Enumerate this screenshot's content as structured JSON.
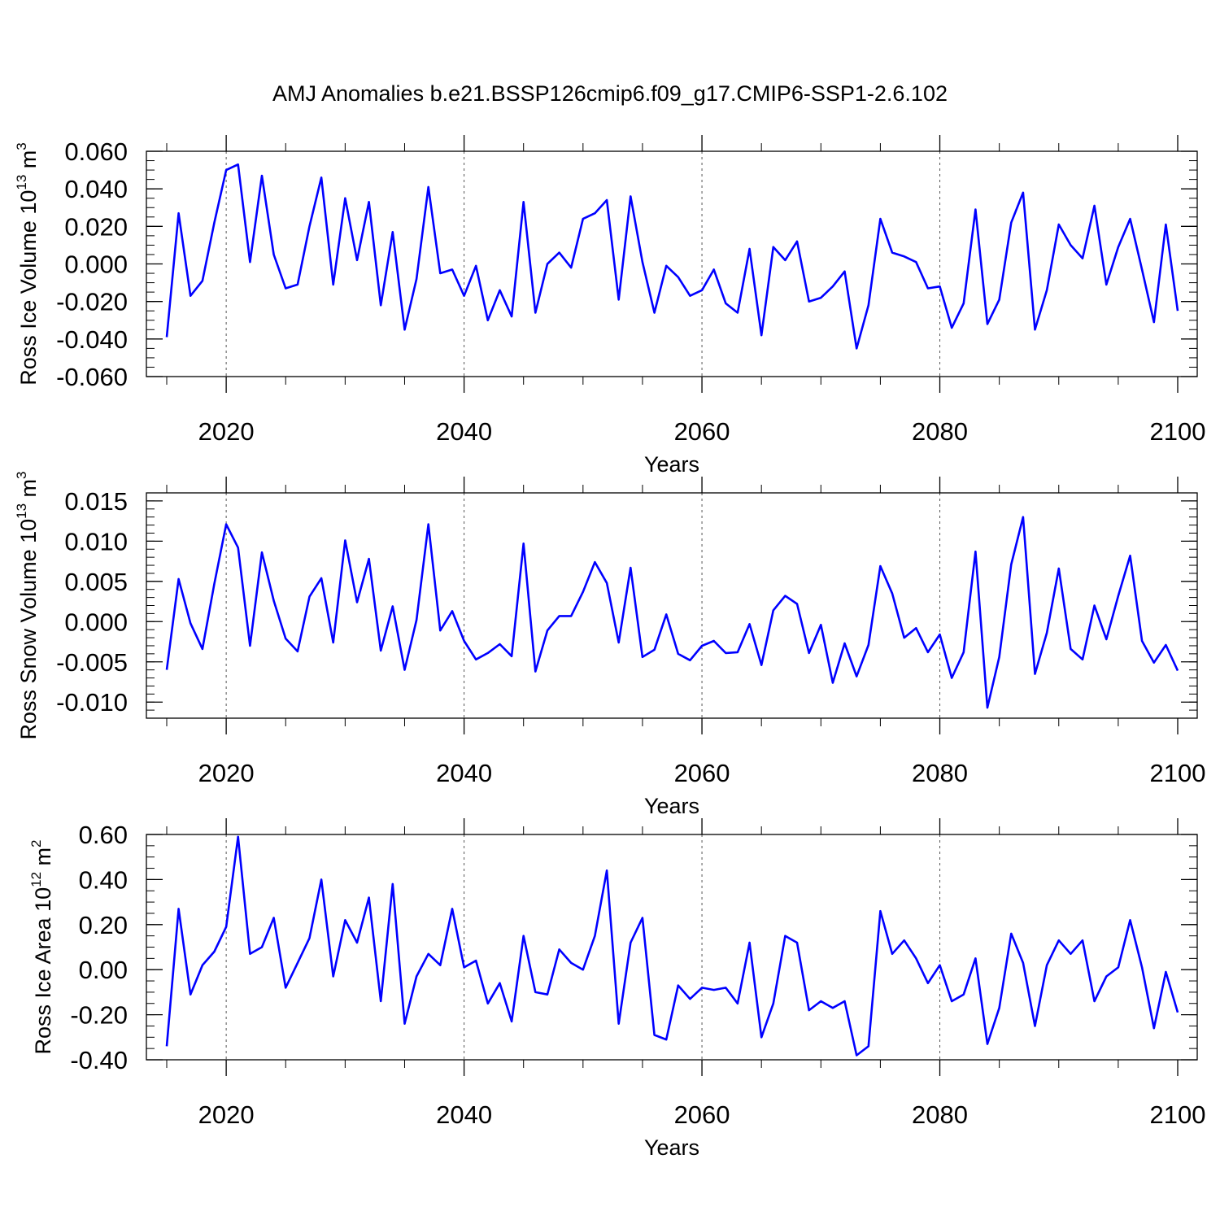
{
  "figure": {
    "title": "AMJ Anomalies b.e21.BSSP126cmip6.f09_g17.CMIP6-SSP1-2.6.102"
  },
  "colors": {
    "line": "#0000ff",
    "axis": "#000000",
    "grid": "#555555"
  },
  "chart_data": [
    {
      "type": "line",
      "ylabel_main": "Ross Ice Volume 10",
      "ylabel_exp": "13",
      "ylabel_unit": " m",
      "ylabel_unit_exp": "3",
      "xlabel": "Years",
      "xlim": [
        2015,
        2100
      ],
      "ylim": [
        -0.06,
        0.06
      ],
      "yticks": [
        -0.06,
        -0.04,
        -0.02,
        0.0,
        0.02,
        0.04,
        0.06
      ],
      "ytick_labels": [
        "-0.060",
        "-0.040",
        "-0.020",
        "0.000",
        "0.020",
        "0.040",
        "0.060"
      ],
      "yminor_step": 0.005,
      "xticks": [
        2020,
        2040,
        2060,
        2080,
        2100
      ],
      "xtick_labels": [
        "2020",
        "2040",
        "2060",
        "2080",
        "2100"
      ],
      "grid_x": [
        2020,
        2040,
        2060,
        2080
      ],
      "series": [
        {
          "name": "Ross Ice Volume",
          "x_start": 2015,
          "values": [
            -0.039,
            0.027,
            -0.017,
            -0.009,
            0.022,
            0.05,
            0.053,
            0.001,
            0.047,
            0.005,
            -0.013,
            -0.011,
            0.02,
            0.046,
            -0.011,
            0.035,
            0.002,
            0.033,
            -0.022,
            0.017,
            -0.035,
            -0.008,
            0.041,
            -0.005,
            -0.003,
            -0.017,
            -0.001,
            -0.03,
            -0.014,
            -0.028,
            0.033,
            -0.026,
            0.0,
            0.006,
            -0.002,
            0.024,
            0.027,
            0.034,
            -0.019,
            0.036,
            0.001,
            -0.026,
            -0.001,
            -0.007,
            -0.017,
            -0.014,
            -0.003,
            -0.021,
            -0.026,
            0.008,
            -0.038,
            0.009,
            0.002,
            0.012,
            -0.02,
            -0.018,
            -0.012,
            -0.004,
            -0.045,
            -0.022,
            0.024,
            0.006,
            0.004,
            0.001,
            -0.013,
            -0.012,
            -0.034,
            -0.021,
            0.029,
            -0.032,
            -0.019,
            0.022,
            0.038,
            -0.035,
            -0.014,
            0.021,
            0.01,
            0.003,
            0.031,
            -0.011,
            0.009,
            0.024,
            -0.003,
            -0.031,
            0.021,
            -0.025
          ]
        }
      ]
    },
    {
      "type": "line",
      "ylabel_main": "Ross Snow Volume 10",
      "ylabel_exp": "13",
      "ylabel_unit": " m",
      "ylabel_unit_exp": "3",
      "xlabel": "Years",
      "xlim": [
        2015,
        2100
      ],
      "ylim": [
        -0.012,
        0.016
      ],
      "yticks": [
        -0.01,
        -0.005,
        0.0,
        0.005,
        0.01,
        0.015
      ],
      "ytick_labels": [
        "-0.010",
        "-0.005",
        "0.000",
        "0.005",
        "0.010",
        "0.015"
      ],
      "yminor_step": 0.001,
      "xticks": [
        2020,
        2040,
        2060,
        2080,
        2100
      ],
      "xtick_labels": [
        "2020",
        "2040",
        "2060",
        "2080",
        "2100"
      ],
      "grid_x": [
        2020,
        2040,
        2060,
        2080
      ],
      "series": [
        {
          "name": "Ross Snow Volume",
          "x_start": 2015,
          "values": [
            -0.006,
            0.0053,
            -0.0002,
            -0.0034,
            0.0047,
            0.0121,
            0.0092,
            -0.003,
            0.0086,
            0.0026,
            -0.0021,
            -0.0037,
            0.0031,
            0.0054,
            -0.0026,
            0.0101,
            0.0024,
            0.0078,
            -0.0036,
            0.0019,
            -0.006,
            0.0002,
            0.0121,
            -0.0011,
            0.0013,
            -0.0024,
            -0.0047,
            -0.0039,
            -0.0028,
            -0.0043,
            0.0097,
            -0.0062,
            -0.0011,
            0.0007,
            0.0007,
            0.0037,
            0.0074,
            0.0048,
            -0.0026,
            0.0067,
            -0.0044,
            -0.0035,
            0.0009,
            -0.004,
            -0.0048,
            -0.003,
            -0.0024,
            -0.0039,
            -0.0038,
            -0.0003,
            -0.0054,
            0.0014,
            0.0032,
            0.0022,
            -0.0039,
            -0.0004,
            -0.0076,
            -0.0027,
            -0.0068,
            -0.0029,
            0.0069,
            0.0035,
            -0.002,
            -0.0008,
            -0.0038,
            -0.0016,
            -0.007,
            -0.0038,
            0.0087,
            -0.0107,
            -0.0044,
            0.0071,
            0.013,
            -0.0065,
            -0.0014,
            0.0066,
            -0.0034,
            -0.0047,
            0.002,
            -0.0022,
            0.0032,
            0.0082,
            -0.0024,
            -0.0051,
            -0.0029,
            -0.0061
          ]
        }
      ]
    },
    {
      "type": "line",
      "ylabel_main": "Ross Ice Area 10",
      "ylabel_exp": "12",
      "ylabel_unit": " m",
      "ylabel_unit_exp": "2",
      "xlabel": "Years",
      "xlim": [
        2015,
        2100
      ],
      "ylim": [
        -0.4,
        0.6
      ],
      "yticks": [
        -0.4,
        -0.2,
        0.0,
        0.2,
        0.4,
        0.6
      ],
      "ytick_labels": [
        "-0.40",
        "-0.20",
        "0.00",
        "0.20",
        "0.40",
        "0.60"
      ],
      "yminor_step": 0.05,
      "xticks": [
        2020,
        2040,
        2060,
        2080,
        2100
      ],
      "xtick_labels": [
        "2020",
        "2040",
        "2060",
        "2080",
        "2100"
      ],
      "grid_x": [
        2020,
        2040,
        2060,
        2080
      ],
      "series": [
        {
          "name": "Ross Ice Area",
          "x_start": 2015,
          "values": [
            -0.34,
            0.27,
            -0.11,
            0.02,
            0.08,
            0.19,
            0.59,
            0.07,
            0.1,
            0.23,
            -0.08,
            0.03,
            0.14,
            0.4,
            -0.03,
            0.22,
            0.12,
            0.32,
            -0.14,
            0.38,
            -0.24,
            -0.03,
            0.07,
            0.02,
            0.27,
            0.01,
            0.04,
            -0.15,
            -0.06,
            -0.23,
            0.15,
            -0.1,
            -0.11,
            0.09,
            0.03,
            0.0,
            0.15,
            0.44,
            -0.24,
            0.12,
            0.23,
            -0.29,
            -0.31,
            -0.07,
            -0.13,
            -0.08,
            -0.09,
            -0.08,
            -0.15,
            0.12,
            -0.3,
            -0.15,
            0.15,
            0.12,
            -0.18,
            -0.14,
            -0.17,
            -0.14,
            -0.38,
            -0.34,
            0.26,
            0.07,
            0.13,
            0.05,
            -0.06,
            0.02,
            -0.14,
            -0.11,
            0.05,
            -0.33,
            -0.17,
            0.16,
            0.03,
            -0.25,
            0.02,
            0.13,
            0.07,
            0.13,
            -0.14,
            -0.03,
            0.01,
            0.22,
            0.01,
            -0.26,
            -0.01,
            -0.19
          ]
        }
      ]
    }
  ]
}
